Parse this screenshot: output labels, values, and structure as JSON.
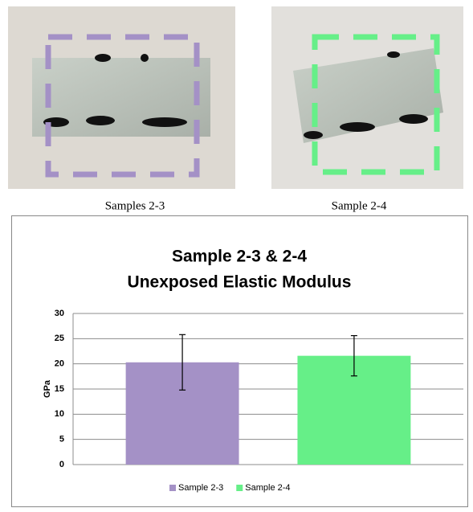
{
  "captions": [
    "Samples 2-3",
    "Sample 2-4"
  ],
  "chart_data": {
    "type": "bar",
    "title": "Sample 2-3 & 2-4",
    "subtitle": "Unexposed Elastic Modulus",
    "y_label": "GPa",
    "categories": [
      null
    ],
    "series": [
      {
        "name": "Sample 2-3",
        "color": "#a491c6",
        "values": [
          20.3
        ],
        "errors": [
          5.5
        ]
      },
      {
        "name": "Sample 2-4",
        "color": "#66ef88",
        "values": [
          21.6
        ],
        "errors": [
          4.0
        ]
      }
    ],
    "ylim": [
      0,
      30
    ],
    "yticks": [
      0,
      5,
      10,
      15,
      20,
      25,
      30
    ],
    "grid": true,
    "legend": "bottom"
  }
}
